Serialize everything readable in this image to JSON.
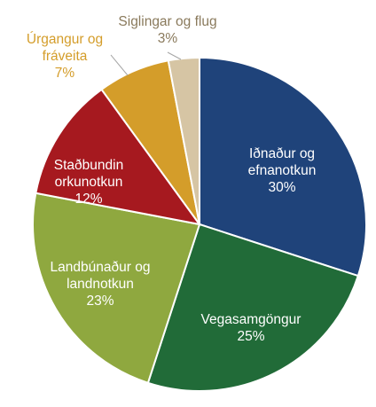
{
  "chart_data": {
    "type": "pie",
    "title": "",
    "start_angle_deg": 0,
    "direction": "clockwise",
    "slices": [
      {
        "label": [
          "Iðnaður og",
          "efnanotkun"
        ],
        "value": 30,
        "value_label": "30%",
        "color": "#1f437a",
        "label_position": "inside"
      },
      {
        "label": [
          "Vegasamgöngur"
        ],
        "value": 25,
        "value_label": "25%",
        "color": "#216b38",
        "label_position": "inside"
      },
      {
        "label": [
          "Landbúnaður og",
          "landnotkun"
        ],
        "value": 23,
        "value_label": "23%",
        "color": "#8fa83f",
        "label_position": "inside"
      },
      {
        "label": [
          "Staðbundin",
          "orkunotkun"
        ],
        "value": 12,
        "value_label": "12%",
        "color": "#a6191f",
        "label_position": "inside"
      },
      {
        "label": [
          "Úrgangur og",
          "fráveita"
        ],
        "value": 7,
        "value_label": "7%",
        "color": "#d49d2a",
        "label_position": "outside"
      },
      {
        "label": [
          "Siglingar og flug"
        ],
        "value": 3,
        "value_label": "3%",
        "color": "#d6c5a4",
        "label_position": "outside"
      }
    ]
  }
}
